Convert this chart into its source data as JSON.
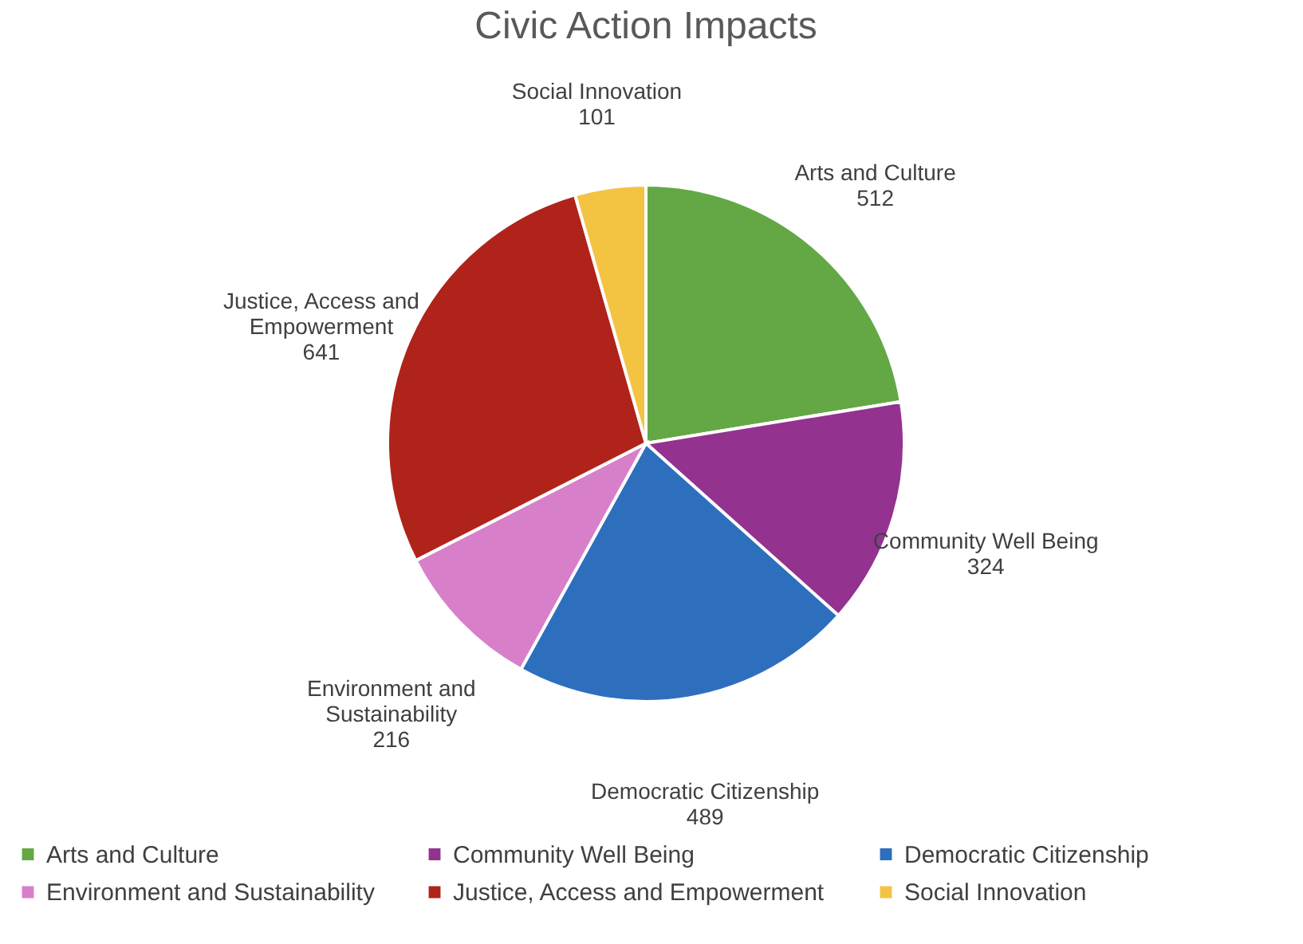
{
  "chart_data": {
    "type": "pie",
    "title": "Civic Action Impacts",
    "categories": [
      "Arts and Culture",
      "Community Well Being",
      "Democratic Citizenship",
      "Environment and Sustainability",
      "Justice, Access and Empowerment",
      "Social Innovation"
    ],
    "values": [
      512,
      324,
      489,
      216,
      641,
      101
    ],
    "colors": [
      "#63a844",
      "#93338f",
      "#2e6fbd",
      "#d87fc9",
      "#b0231a",
      "#f4c342"
    ],
    "data_labels": true,
    "legend": "bottom"
  }
}
